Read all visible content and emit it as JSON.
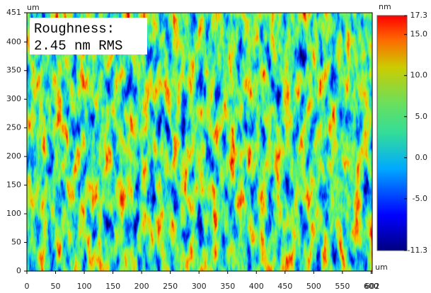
{
  "chart_data": {
    "type": "heatmap",
    "annotation": [
      "Roughness:",
      "2.45 nm RMS"
    ],
    "x_unit": "um",
    "y_unit": "um",
    "color_unit": "nm",
    "xlim": [
      0,
      602
    ],
    "xticks": [
      0,
      50,
      100,
      150,
      200,
      250,
      300,
      350,
      400,
      450,
      500,
      550,
      600,
      602
    ],
    "ylim": [
      0,
      451
    ],
    "yticks": [
      0,
      50,
      100,
      150,
      200,
      250,
      300,
      350,
      400,
      451
    ],
    "clim": [
      -11.3,
      17.3
    ],
    "cticks": [
      -11.3,
      -5.0,
      0.0,
      5.0,
      10.0,
      15.0,
      17.3
    ],
    "ctick_labels": [
      "-11.3",
      "-5.0",
      "0.0",
      "5.0",
      "10.0",
      "15.0",
      "17.3"
    ]
  }
}
